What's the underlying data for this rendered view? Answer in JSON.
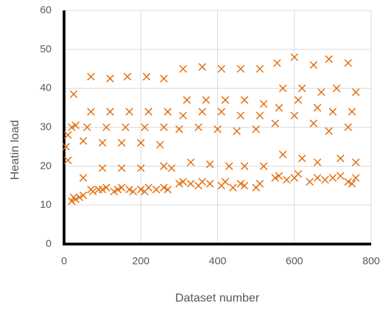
{
  "chart_data": {
    "type": "scatter",
    "x_label": "Dataset number",
    "y_label": "Heatin load",
    "color": "#e46c0a",
    "grid": true,
    "xlim": [
      0,
      800
    ],
    "xticks": [
      0,
      200,
      400,
      600,
      800
    ],
    "ylim": [
      0,
      60
    ],
    "yticks": [
      0,
      10,
      20,
      30,
      40,
      50,
      60
    ],
    "x": [
      20,
      25,
      30,
      40,
      50,
      70,
      75,
      90,
      100,
      110,
      130,
      140,
      150,
      170,
      180,
      200,
      210,
      220,
      240,
      260,
      270,
      300,
      310,
      330,
      350,
      360,
      380,
      410,
      420,
      440,
      460,
      470,
      500,
      510,
      550,
      560,
      580,
      600,
      610,
      640,
      660,
      680,
      700,
      720,
      740,
      750,
      760,
      10,
      50,
      100,
      150,
      200,
      260,
      280,
      330,
      380,
      430,
      470,
      520,
      570,
      620,
      660,
      720,
      760,
      5,
      10,
      20,
      30,
      50,
      60,
      70,
      100,
      110,
      120,
      150,
      160,
      170,
      200,
      210,
      220,
      250,
      260,
      270,
      300,
      310,
      320,
      350,
      360,
      370,
      400,
      410,
      420,
      450,
      460,
      470,
      500,
      510,
      520,
      550,
      560,
      570,
      600,
      610,
      620,
      650,
      660,
      670,
      690,
      700,
      710,
      740,
      750,
      760,
      25,
      70,
      120,
      165,
      215,
      260,
      310,
      360,
      410,
      460,
      510,
      555,
      600,
      650,
      690,
      740
    ],
    "values": [
      11,
      12,
      11.5,
      12,
      12.5,
      14,
      13.5,
      14,
      14,
      14.5,
      13.5,
      14,
      14.5,
      14,
      13.5,
      14,
      13.5,
      14.5,
      14,
      14.5,
      14,
      15.5,
      16,
      15.5,
      15,
      16,
      15.5,
      15,
      16,
      14.5,
      15.5,
      15,
      14.5,
      15.5,
      17,
      17.5,
      16.5,
      17,
      18,
      16,
      17,
      16.5,
      17,
      17.5,
      16,
      15.5,
      17,
      21.5,
      17,
      19.5,
      19.5,
      19.5,
      20,
      19.5,
      21,
      20.5,
      20,
      20,
      20,
      23,
      22,
      21,
      22,
      21,
      25,
      28,
      30,
      30.5,
      26.5,
      30,
      34,
      26,
      30,
      34,
      26,
      30,
      34,
      26,
      30,
      34,
      25.5,
      30,
      34,
      29.5,
      33,
      37,
      30,
      34,
      37,
      29.5,
      34,
      37,
      29,
      33,
      37,
      29.5,
      33,
      36,
      31,
      35,
      40,
      33,
      37,
      40,
      31,
      35,
      39,
      29,
      34,
      40,
      30,
      34,
      39,
      38.5,
      43,
      42.5,
      43,
      43,
      42.5,
      45,
      45.5,
      45,
      45,
      45,
      46.5,
      48,
      46,
      47.5,
      46.5
    ]
  }
}
